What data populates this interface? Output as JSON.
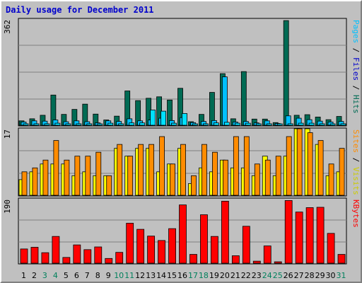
{
  "title": "Daily usage for December 2011",
  "colors": {
    "hits": "#006b54",
    "files": "#00c0ff",
    "pages": "#00e0ff",
    "visits": "#ffff00",
    "sites": "#ff8c00",
    "kbytes": "#ff0000",
    "day_even": "#000000",
    "day_weekend": "#00805c"
  },
  "chart_data": [
    {
      "type": "bar",
      "title": "",
      "ymax_label": "362",
      "ylim": [
        0,
        362
      ],
      "categories": [
        "1",
        "2",
        "3",
        "4",
        "5",
        "6",
        "7",
        "8",
        "9",
        "10",
        "11",
        "12",
        "13",
        "14",
        "15",
        "16",
        "17",
        "18",
        "19",
        "20",
        "21",
        "22",
        "23",
        "24",
        "25",
        "26",
        "27",
        "28",
        "29",
        "30",
        "31"
      ],
      "series": [
        {
          "name": "Hits",
          "values": [
            15,
            22,
            34,
            103,
            37,
            54,
            72,
            38,
            18,
            31,
            117,
            84,
            92,
            97,
            86,
            126,
            12,
            37,
            112,
            176,
            22,
            183,
            21,
            21,
            9,
            357,
            34,
            36,
            28,
            19,
            30
          ]
        },
        {
          "name": "Files",
          "values": [
            11,
            15,
            14,
            18,
            12,
            15,
            12,
            8,
            15,
            13,
            22,
            15,
            18,
            24,
            16,
            26,
            9,
            13,
            16,
            165,
            11,
            13,
            8,
            15,
            6,
            32,
            24,
            19,
            14,
            11,
            13
          ]
        },
        {
          "name": "Pages",
          "values": [
            5,
            5,
            5,
            7,
            5,
            5,
            5,
            4,
            7,
            5,
            8,
            8,
            52,
            48,
            7,
            40,
            4,
            5,
            8,
            10,
            7,
            7,
            5,
            5,
            4,
            5,
            7,
            7,
            5,
            4,
            5
          ]
        }
      ]
    },
    {
      "type": "bar",
      "title": "",
      "ymax_label": "17",
      "ylim": [
        0,
        17
      ],
      "categories": [
        "1",
        "2",
        "3",
        "4",
        "5",
        "6",
        "7",
        "8",
        "9",
        "10",
        "11",
        "12",
        "13",
        "14",
        "15",
        "16",
        "17",
        "18",
        "19",
        "20",
        "21",
        "22",
        "23",
        "24",
        "25",
        "26",
        "27",
        "28",
        "29",
        "30",
        "31"
      ],
      "series": [
        {
          "name": "Visits",
          "values": [
            4,
            6,
            8,
            8,
            8,
            5,
            6,
            5,
            5,
            12,
            10,
            12,
            12,
            6,
            8,
            12,
            3,
            7,
            6,
            9,
            7,
            7,
            5,
            10,
            5,
            10,
            17,
            17,
            13,
            5,
            6
          ]
        },
        {
          "name": "Sites",
          "values": [
            6,
            7,
            9,
            14,
            9,
            10,
            10,
            11,
            5,
            13,
            10,
            13,
            13,
            15,
            8,
            13,
            5,
            13,
            11,
            9,
            15,
            15,
            8,
            9,
            10,
            15,
            17,
            16,
            14,
            8,
            12
          ]
        }
      ]
    },
    {
      "type": "bar",
      "title": "",
      "ymax_label": "190",
      "ylim": [
        0,
        190
      ],
      "categories": [
        "1",
        "2",
        "3",
        "4",
        "5",
        "6",
        "7",
        "8",
        "9",
        "10",
        "11",
        "12",
        "13",
        "14",
        "15",
        "16",
        "17",
        "18",
        "19",
        "20",
        "21",
        "22",
        "23",
        "24",
        "25",
        "26",
        "27",
        "28",
        "29",
        "30",
        "31"
      ],
      "series": [
        {
          "name": "KBytes",
          "values": [
            42,
            47,
            31,
            79,
            17,
            54,
            40,
            48,
            14,
            32,
            118,
            100,
            80,
            67,
            102,
            172,
            26,
            143,
            79,
            183,
            22,
            109,
            6,
            51,
            4,
            185,
            151,
            164,
            165,
            88,
            26
          ]
        }
      ]
    }
  ],
  "day_labels": [
    "1",
    "2",
    "3",
    "4",
    "5",
    "6",
    "7",
    "8",
    "9",
    "10",
    "11",
    "12",
    "13",
    "14",
    "15",
    "16",
    "17",
    "18",
    "19",
    "20",
    "21",
    "22",
    "23",
    "24",
    "25",
    "26",
    "27",
    "28",
    "29",
    "30",
    "31"
  ],
  "weekend_days": [
    "3",
    "4",
    "10",
    "11",
    "17",
    "18",
    "24",
    "25",
    "31"
  ],
  "right_labels": {
    "panel1": [
      {
        "text": "Pages",
        "color": "#00c0ff"
      },
      {
        "text": " / ",
        "color": "#000000"
      },
      {
        "text": "Files",
        "color": "#0000cc"
      },
      {
        "text": " / ",
        "color": "#000000"
      },
      {
        "text": "Hits",
        "color": "#006b54"
      }
    ],
    "panel2": [
      {
        "text": "Sites",
        "color": "#ff8c00"
      },
      {
        "text": " / ",
        "color": "#000000"
      },
      {
        "text": "Visits",
        "color": "#cccc00"
      }
    ],
    "panel3": [
      {
        "text": "KBytes",
        "color": "#ff0000"
      }
    ]
  }
}
